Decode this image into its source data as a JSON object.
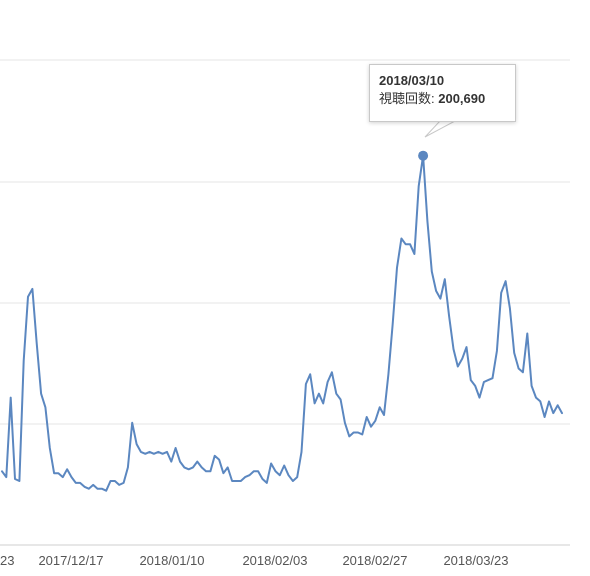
{
  "chart_data": {
    "type": "line",
    "x_start": "2017-11-27",
    "x_end": "2018-04-13",
    "x_tick_labels": [
      "23",
      "2017/12/17",
      "2018/01/10",
      "2018/02/03",
      "2018/02/27",
      "2018/03/23"
    ],
    "ylim": [
      0,
      250000
    ],
    "grid": true,
    "series": [
      {
        "color": "#5b87c0",
        "values": [
          38000,
          35000,
          76000,
          34000,
          33000,
          95000,
          128000,
          132000,
          104000,
          78000,
          71000,
          50000,
          37000,
          37000,
          35000,
          39000,
          35000,
          32000,
          32000,
          30000,
          29000,
          31000,
          29000,
          29000,
          28000,
          33000,
          33000,
          31000,
          32000,
          40000,
          63000,
          52000,
          48000,
          47000,
          48000,
          47000,
          48000,
          47000,
          48000,
          43000,
          50000,
          43000,
          40000,
          39000,
          40000,
          43000,
          40000,
          38000,
          38000,
          46000,
          44000,
          37000,
          40000,
          33000,
          33000,
          33000,
          35000,
          36000,
          38000,
          38000,
          34000,
          32000,
          42000,
          38000,
          36000,
          41000,
          36000,
          33000,
          35000,
          48000,
          83000,
          88000,
          73000,
          78000,
          73000,
          84000,
          89000,
          78000,
          75000,
          63000,
          56000,
          58000,
          58000,
          57000,
          66000,
          61000,
          64000,
          71000,
          67000,
          88000,
          114000,
          143000,
          158000,
          155000,
          155000,
          150000,
          185000,
          200690,
          167000,
          141000,
          131000,
          127000,
          137000,
          118000,
          101000,
          92000,
          96000,
          102000,
          85000,
          82000,
          76000,
          84000,
          85000,
          86000,
          100000,
          130000,
          136000,
          122000,
          99000,
          91000,
          89000,
          109000,
          82000,
          76000,
          74000,
          66000,
          74000,
          68000,
          72000,
          68000
        ]
      }
    ],
    "highlight": {
      "index": 97,
      "date_label": "2018/03/10",
      "metric_label": "視聴回数: ",
      "value_label": "200,690"
    }
  }
}
